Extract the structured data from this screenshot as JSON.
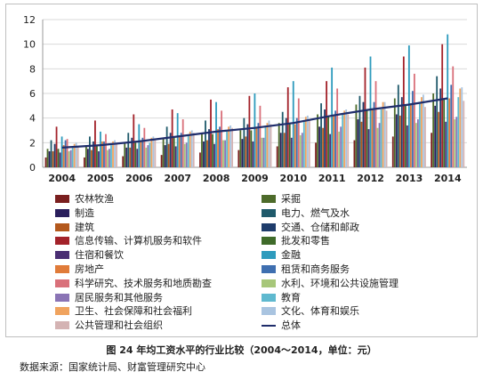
{
  "chart_data": {
    "type": "bar",
    "categories": [
      "2004",
      "2005",
      "2006",
      "2007",
      "2008",
      "2009",
      "2010",
      "2011",
      "2012",
      "2013",
      "2014"
    ],
    "ylim": [
      0,
      12
    ],
    "yticks": [
      0,
      2,
      4,
      6,
      8,
      10,
      12
    ],
    "grid": true,
    "legend_position": "bottom",
    "series": [
      {
        "name": "农林牧渔",
        "color": "#7a1f1f",
        "values": [
          0.8,
          0.8,
          0.9,
          1.0,
          1.2,
          1.4,
          1.7,
          2.0,
          2.2,
          2.5,
          2.8
        ]
      },
      {
        "name": "采掘",
        "color": "#4d6b2a",
        "values": [
          1.5,
          1.7,
          2.0,
          2.4,
          2.8,
          3.0,
          3.6,
          4.3,
          5.1,
          5.6,
          6.0
        ]
      },
      {
        "name": "制造",
        "color": "#2a1f5c",
        "values": [
          1.3,
          1.5,
          1.6,
          1.8,
          2.1,
          2.3,
          2.8,
          3.3,
          3.9,
          4.3,
          5.0
        ]
      },
      {
        "name": "电力、燃气及水",
        "color": "#1f5a6b",
        "values": [
          2.2,
          2.5,
          2.8,
          3.3,
          3.8,
          4.0,
          4.5,
          5.2,
          5.8,
          6.7,
          7.4
        ]
      },
      {
        "name": "建筑",
        "color": "#b3581c",
        "values": [
          1.3,
          1.4,
          1.6,
          1.9,
          2.2,
          2.5,
          2.8,
          3.2,
          3.7,
          4.2,
          4.5
        ]
      },
      {
        "name": "交通、仓储和邮政",
        "color": "#1e3c6b",
        "values": [
          1.9,
          2.1,
          2.4,
          2.8,
          3.1,
          3.5,
          4.0,
          4.7,
          5.3,
          5.7,
          6.4
        ]
      },
      {
        "name": "信息传输、计算机服务和软件",
        "color": "#a3222a",
        "values": [
          3.3,
          3.8,
          4.3,
          4.7,
          5.5,
          5.8,
          6.5,
          7.0,
          8.1,
          9.0,
          10.0
        ]
      },
      {
        "name": "批发和零售",
        "color": "#3f6b2a",
        "values": [
          1.5,
          1.7,
          2.0,
          2.4,
          2.7,
          3.0,
          3.6,
          4.1,
          4.7,
          5.0,
          5.5
        ]
      },
      {
        "name": "住宿和餐饮",
        "color": "#4a2e73",
        "values": [
          1.2,
          1.3,
          1.5,
          1.7,
          1.9,
          2.1,
          2.4,
          2.7,
          3.1,
          3.4,
          3.7
        ]
      },
      {
        "name": "金融",
        "color": "#2e9bbd",
        "values": [
          2.5,
          2.9,
          3.5,
          4.4,
          5.3,
          6.0,
          7.0,
          8.1,
          9.0,
          9.9,
          10.8
        ]
      },
      {
        "name": "房地产",
        "color": "#e07b39",
        "values": [
          1.8,
          2.1,
          2.2,
          2.6,
          3.1,
          3.3,
          3.5,
          4.2,
          4.7,
          5.2,
          5.6
        ]
      },
      {
        "name": "租赁和商务服务",
        "color": "#3f6fb0",
        "values": [
          2.2,
          2.1,
          2.4,
          2.8,
          3.3,
          3.6,
          4.0,
          4.6,
          5.3,
          6.2,
          6.7
        ]
      },
      {
        "name": "科学研究、技术服务和地质勘查",
        "color": "#d9707a",
        "values": [
          2.3,
          2.7,
          3.2,
          3.9,
          4.6,
          5.0,
          5.6,
          6.4,
          7.0,
          7.6,
          8.2
        ]
      },
      {
        "name": "水利、环境和公共设施管理",
        "color": "#a7c77a",
        "values": [
          1.3,
          1.4,
          1.6,
          1.9,
          2.2,
          2.4,
          2.6,
          2.9,
          3.2,
          3.6,
          3.9
        ]
      },
      {
        "name": "居民服务和其他服务",
        "color": "#8a74b5",
        "values": [
          1.4,
          1.5,
          1.8,
          2.0,
          2.2,
          2.4,
          2.8,
          3.3,
          3.6,
          3.9,
          4.1
        ]
      },
      {
        "name": "教育",
        "color": "#5fb9cf",
        "values": [
          1.6,
          1.8,
          2.0,
          2.6,
          2.9,
          3.4,
          3.8,
          4.3,
          4.7,
          5.2,
          5.7
        ]
      },
      {
        "name": "卫生、社会保障和社会福利",
        "color": "#f0a35e",
        "values": [
          1.9,
          2.1,
          2.4,
          2.9,
          3.3,
          3.6,
          4.1,
          4.6,
          5.3,
          5.7,
          6.4
        ]
      },
      {
        "name": "文化、体育和娱乐",
        "color": "#a9c4e0",
        "values": [
          2.0,
          2.2,
          2.5,
          3.0,
          3.4,
          3.8,
          4.2,
          4.7,
          5.3,
          5.9,
          6.5
        ]
      },
      {
        "name": "公共管理和社会组织",
        "color": "#d4b3b3",
        "values": [
          1.7,
          1.9,
          2.2,
          2.8,
          3.2,
          3.5,
          3.8,
          4.3,
          4.6,
          4.9,
          5.4
        ]
      }
    ],
    "total": {
      "name": "总体",
      "color": "#1f2d6b",
      "values": [
        1.6,
        1.8,
        2.1,
        2.5,
        2.9,
        3.2,
        3.6,
        4.2,
        4.7,
        5.1,
        5.6
      ]
    }
  },
  "legend_labels": [
    "农林牧渔",
    "采掘",
    "制造",
    "电力、燃气及水",
    "建筑",
    "交通、仓储和邮政",
    "信息传输、计算机服务和软件",
    "批发和零售",
    "住宿和餐饮",
    "金融",
    "房地产",
    "租赁和商务服务",
    "科学研究、技术服务和地质勘查",
    "水利、环境和公共设施管理",
    "居民服务和其他服务",
    "教育",
    "卫生、社会保障和社会福利",
    "文化、体育和娱乐",
    "公共管理和社会组织",
    "总体"
  ],
  "caption": "图 24 年均工资水平的行业比较（2004～2014，单位：元）",
  "source": "数据来源：国家统计局、财富管理研究中心"
}
